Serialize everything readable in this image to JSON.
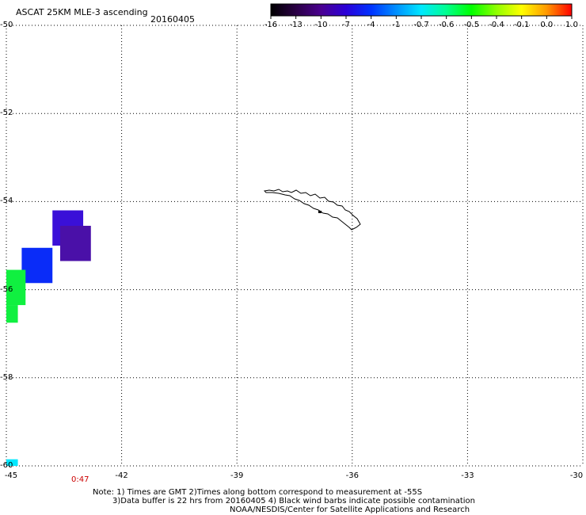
{
  "header": {
    "title": "ASCAT 25KM MLE-3 ascending",
    "date": "20160405"
  },
  "colorbar": {
    "labels": [
      "-16",
      "-13",
      "-10",
      "-7",
      "-4",
      "-1",
      "-0.7",
      "-0.6",
      "-0.5",
      "-0.4",
      "-0.1",
      "0.0",
      "1.0"
    ],
    "colors": [
      "#000000",
      "#2a0044",
      "#4a0090",
      "#2a00d8",
      "#0033ff",
      "#0090ff",
      "#00e8ff",
      "#00ff90",
      "#00ff00",
      "#90ff00",
      "#ffff00",
      "#ff9900",
      "#ff0000"
    ]
  },
  "map": {
    "lon_range": [
      -45,
      -30
    ],
    "lat_range": [
      -60,
      -50
    ],
    "x_ticks": [
      "-45",
      "-42",
      "-39",
      "-36",
      "-33",
      "-30"
    ],
    "y_ticks": [
      "-50",
      "-52",
      "-54",
      "-56",
      "-58",
      "-60"
    ],
    "pass_time": "0:47",
    "data_cells": [
      {
        "lon": [
          -44.6,
          -43.8
        ],
        "lat": [
          -55.05,
          -55.85
        ],
        "color": "#0a2cf8"
      },
      {
        "lon": [
          -43.8,
          -43.0
        ],
        "lat": [
          -54.2,
          -55.0
        ],
        "color": "#3a10d8"
      },
      {
        "lon": [
          -43.6,
          -42.8
        ],
        "lat": [
          -54.55,
          -55.35
        ],
        "color": "#4a10a8"
      },
      {
        "lon": [
          -45.0,
          -44.5
        ],
        "lat": [
          -55.55,
          -56.35
        ],
        "color": "#10f040"
      },
      {
        "lon": [
          -45.0,
          -44.7
        ],
        "lat": [
          -56.35,
          -56.75
        ],
        "color": "#10f040"
      },
      {
        "lon": [
          -45.0,
          -44.7
        ],
        "lat": [
          -59.85,
          -60.0
        ],
        "color": "#00e8ff"
      }
    ]
  },
  "notes": {
    "line1": "Note: 1) Times are GMT 2)Times along bottom correspond to measurement at -55S",
    "line2": "3)Data buffer is 22 hrs from 20160405 4) Black wind barbs indicate possible contamination",
    "line3": "NOAA/NESDIS/Center for Satellite Applications and Research"
  }
}
